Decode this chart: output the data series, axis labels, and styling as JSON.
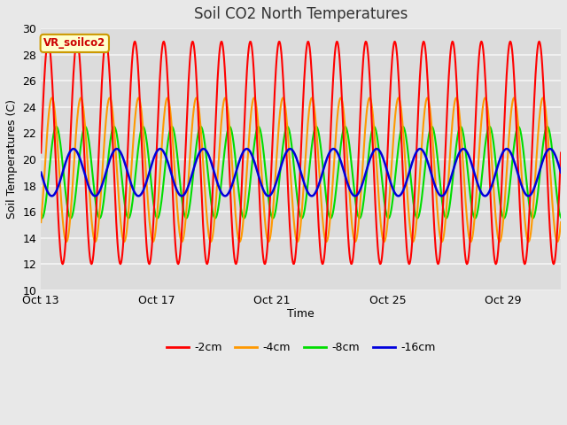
{
  "title": "Soil CO2 North Temperatures",
  "xlabel": "Time",
  "ylabel": "Soil Temperatures (C)",
  "ylim": [
    10,
    30
  ],
  "annotation": "VR_soilco2",
  "fig_bg_color": "#e8e8e8",
  "plot_bg_color": "#dcdcdc",
  "grid_color": "#f0f0f0",
  "legend_entries": [
    "-2cm",
    "-4cm",
    "-8cm",
    "-16cm"
  ],
  "line_colors": [
    "#ff0000",
    "#ff9900",
    "#00dd00",
    "#0000dd"
  ],
  "xtick_labels": [
    "Oct 13",
    "Oct 17",
    "Oct 21",
    "Oct 25",
    "Oct 29"
  ],
  "num_days": 18,
  "samples_per_day": 48
}
